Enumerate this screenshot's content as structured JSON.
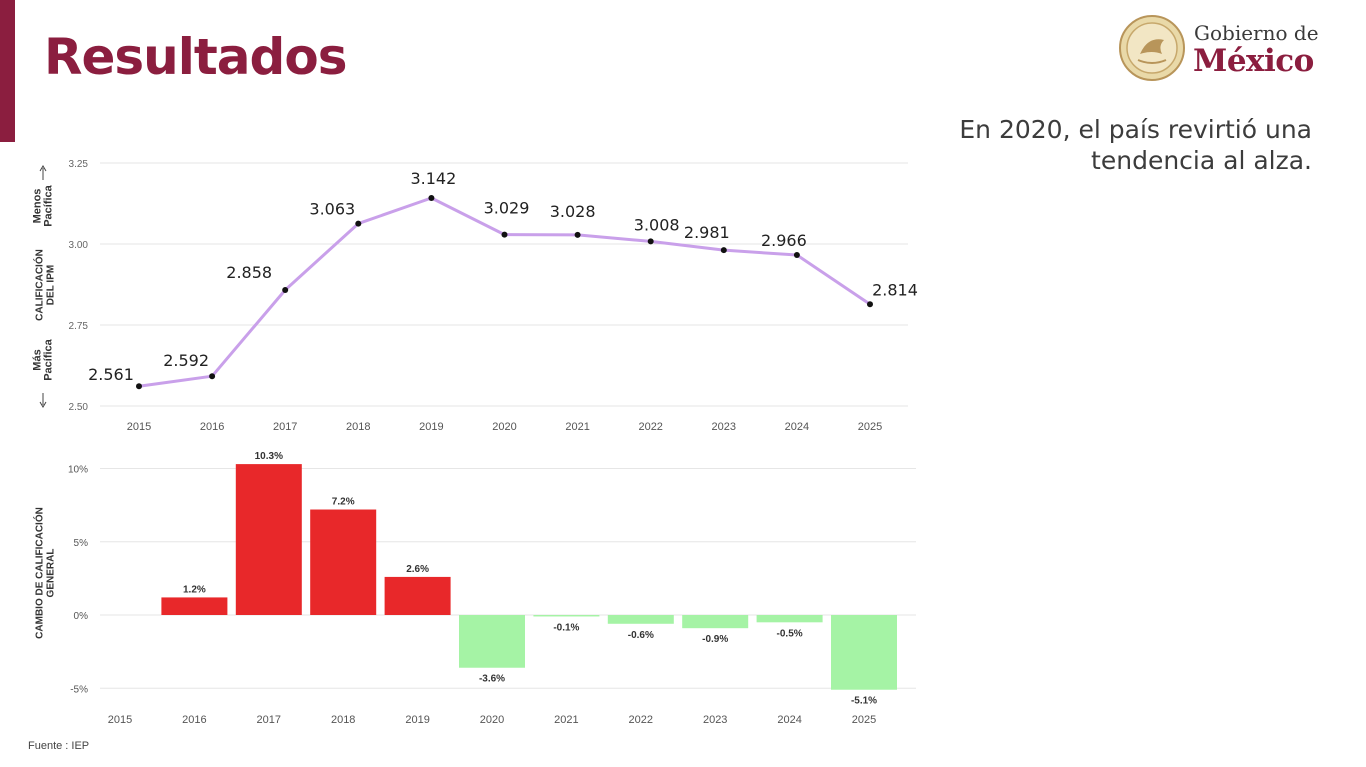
{
  "header": {
    "title": "Resultados"
  },
  "logo": {
    "line1": "Gobierno de",
    "line2": "México",
    "icon": "national-seal-icon"
  },
  "headline": {
    "line1": "En 2020, el país revirtió una",
    "line2": "tendencia al alza."
  },
  "source": "Fuente : IEP",
  "colors": {
    "accent": "#8b1e3f",
    "line": "#c9a0ea",
    "bar_positive": "#e8282a",
    "bar_negative": "#a5f3a5"
  },
  "chart_data": [
    {
      "type": "line",
      "x": [
        "2015",
        "2016",
        "2017",
        "2018",
        "2019",
        "2020",
        "2021",
        "2022",
        "2023",
        "2024",
        "2025"
      ],
      "series": [
        {
          "values": [
            2.561,
            2.592,
            2.858,
            3.063,
            3.142,
            3.029,
            3.028,
            3.008,
            2.981,
            2.966,
            2.814
          ]
        }
      ],
      "data_labels": [
        "2.561",
        "2.592",
        "2.858",
        "3.063",
        "3.142",
        "3.029",
        "3.028",
        "3.008",
        "2.981",
        "2.966",
        "2.814"
      ],
      "ylabel": [
        "CALIFICACIÓN",
        "DEL IPM"
      ],
      "y_arrow_labels": {
        "top": [
          "Menos",
          "Pacífica"
        ],
        "bottom": [
          "Más",
          "Pacífica"
        ]
      },
      "yticks": [
        "3.25",
        "3.00",
        "2.75",
        "2.50"
      ],
      "ylim": [
        2.5,
        3.25
      ],
      "grid": true
    },
    {
      "type": "bar",
      "categories": [
        "2015",
        "2016",
        "2017",
        "2018",
        "2019",
        "2020",
        "2021",
        "2022",
        "2023",
        "2024",
        "2025"
      ],
      "values": [
        null,
        1.2,
        10.3,
        7.2,
        2.6,
        -3.6,
        -0.1,
        -0.6,
        -0.9,
        -0.5,
        -5.1
      ],
      "data_labels": [
        "",
        "1.2%",
        "10.3%",
        "7.2%",
        "2.6%",
        "-3.6%",
        "-0.1%",
        "-0.6%",
        "-0.9%",
        "-0.5%",
        "-5.1%"
      ],
      "ylabel": [
        "CAMBIO DE CALIFICACIÓN",
        "GENERAL"
      ],
      "yticks": [
        "10%",
        "5%",
        "0%",
        "-5%"
      ],
      "ylim": [
        -5.5,
        11
      ],
      "grid": true
    }
  ]
}
